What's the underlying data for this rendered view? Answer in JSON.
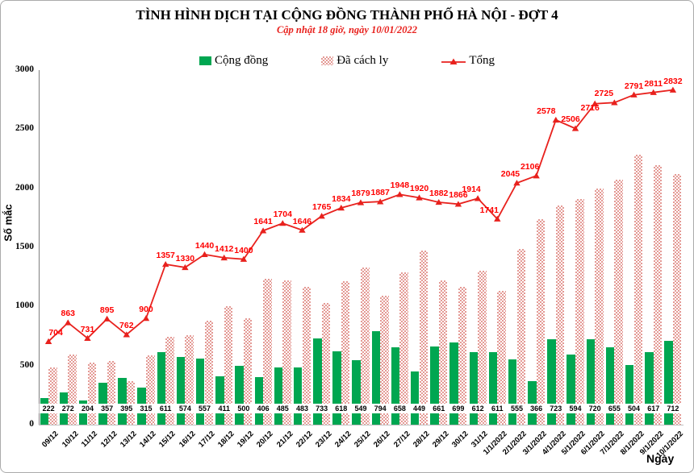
{
  "header": {
    "title": "TÌNH HÌNH DỊCH TẠI CỘNG ĐỒNG THÀNH PHỐ HÀ NỘI - ĐỢT 4",
    "subtitle": "Cập nhật 18 giờ, ngày 10/01/2022"
  },
  "chart_data": {
    "type": "bar+line",
    "title": "TÌNH HÌNH DỊCH TẠI CỘNG ĐỒNG THÀNH PHỐ HÀ NỘI - ĐỢT 4",
    "subtitle": "Cập nhật 18 giờ, ngày 10/01/2022",
    "xlabel": "Ngày",
    "ylabel": "Số mắc",
    "ylim": [
      0,
      3000
    ],
    "yticks": [
      0,
      500,
      1000,
      1500,
      2000,
      2500,
      3000
    ],
    "grid": false,
    "legend_position": "top",
    "categories": [
      "09/12",
      "10/12",
      "11/12",
      "12/12",
      "13/12",
      "14/12",
      "15/12",
      "16/12",
      "17/12",
      "18/12",
      "19/12",
      "20/12",
      "21/12",
      "22/12",
      "23/12",
      "24/12",
      "25/12",
      "26/12",
      "27/12",
      "28/12",
      "29/12",
      "30/12",
      "31/12",
      "1/1/2022",
      "2/1/2022",
      "3/1/2022",
      "4/1/2022",
      "5/1/2022",
      "6/1/2022",
      "7/1/2022",
      "8/1/2022",
      "9/1/2022",
      "10/1/2022"
    ],
    "series": [
      {
        "name": "Cộng đồng",
        "type": "bar",
        "style": "solid",
        "color": "#00a651",
        "values": [
          222,
          272,
          204,
          357,
          395,
          315,
          611,
          574,
          557,
          411,
          500,
          406,
          485,
          483,
          733,
          618,
          549,
          794,
          658,
          449,
          661,
          699,
          612,
          611,
          555,
          366,
          723,
          594,
          720,
          655,
          504,
          617,
          712
        ],
        "labels_shown": "at bar base in white boxes"
      },
      {
        "name": "Đã cách ly",
        "type": "bar",
        "style": "hatched",
        "color": "#e49a95",
        "values": [
          482,
          591,
          527,
          538,
          367,
          585,
          746,
          756,
          883,
          1001,
          900,
          1235,
          1219,
          1163,
          1032,
          1216,
          1330,
          1093,
          1290,
          1471,
          1221,
          1167,
          1302,
          1130,
          1490,
          1740,
          1855,
          1912,
          1996,
          2070,
          2287,
          2194,
          2120
        ],
        "labels_shown": "none (heights = Tổng − Cộng đồng)"
      },
      {
        "name": "Tổng",
        "type": "line",
        "marker": "triangle",
        "color": "#e8211d",
        "values": [
          704,
          863,
          731,
          895,
          762,
          900,
          1357,
          1330,
          1440,
          1412,
          1400,
          1641,
          1704,
          1646,
          1765,
          1834,
          1879,
          1887,
          1948,
          1920,
          1882,
          1866,
          1914,
          1741,
          2045,
          2106,
          2578,
          2506,
          2716,
          2725,
          2791,
          2811,
          2832
        ],
        "labels_shown": "above each marker in red"
      }
    ]
  }
}
